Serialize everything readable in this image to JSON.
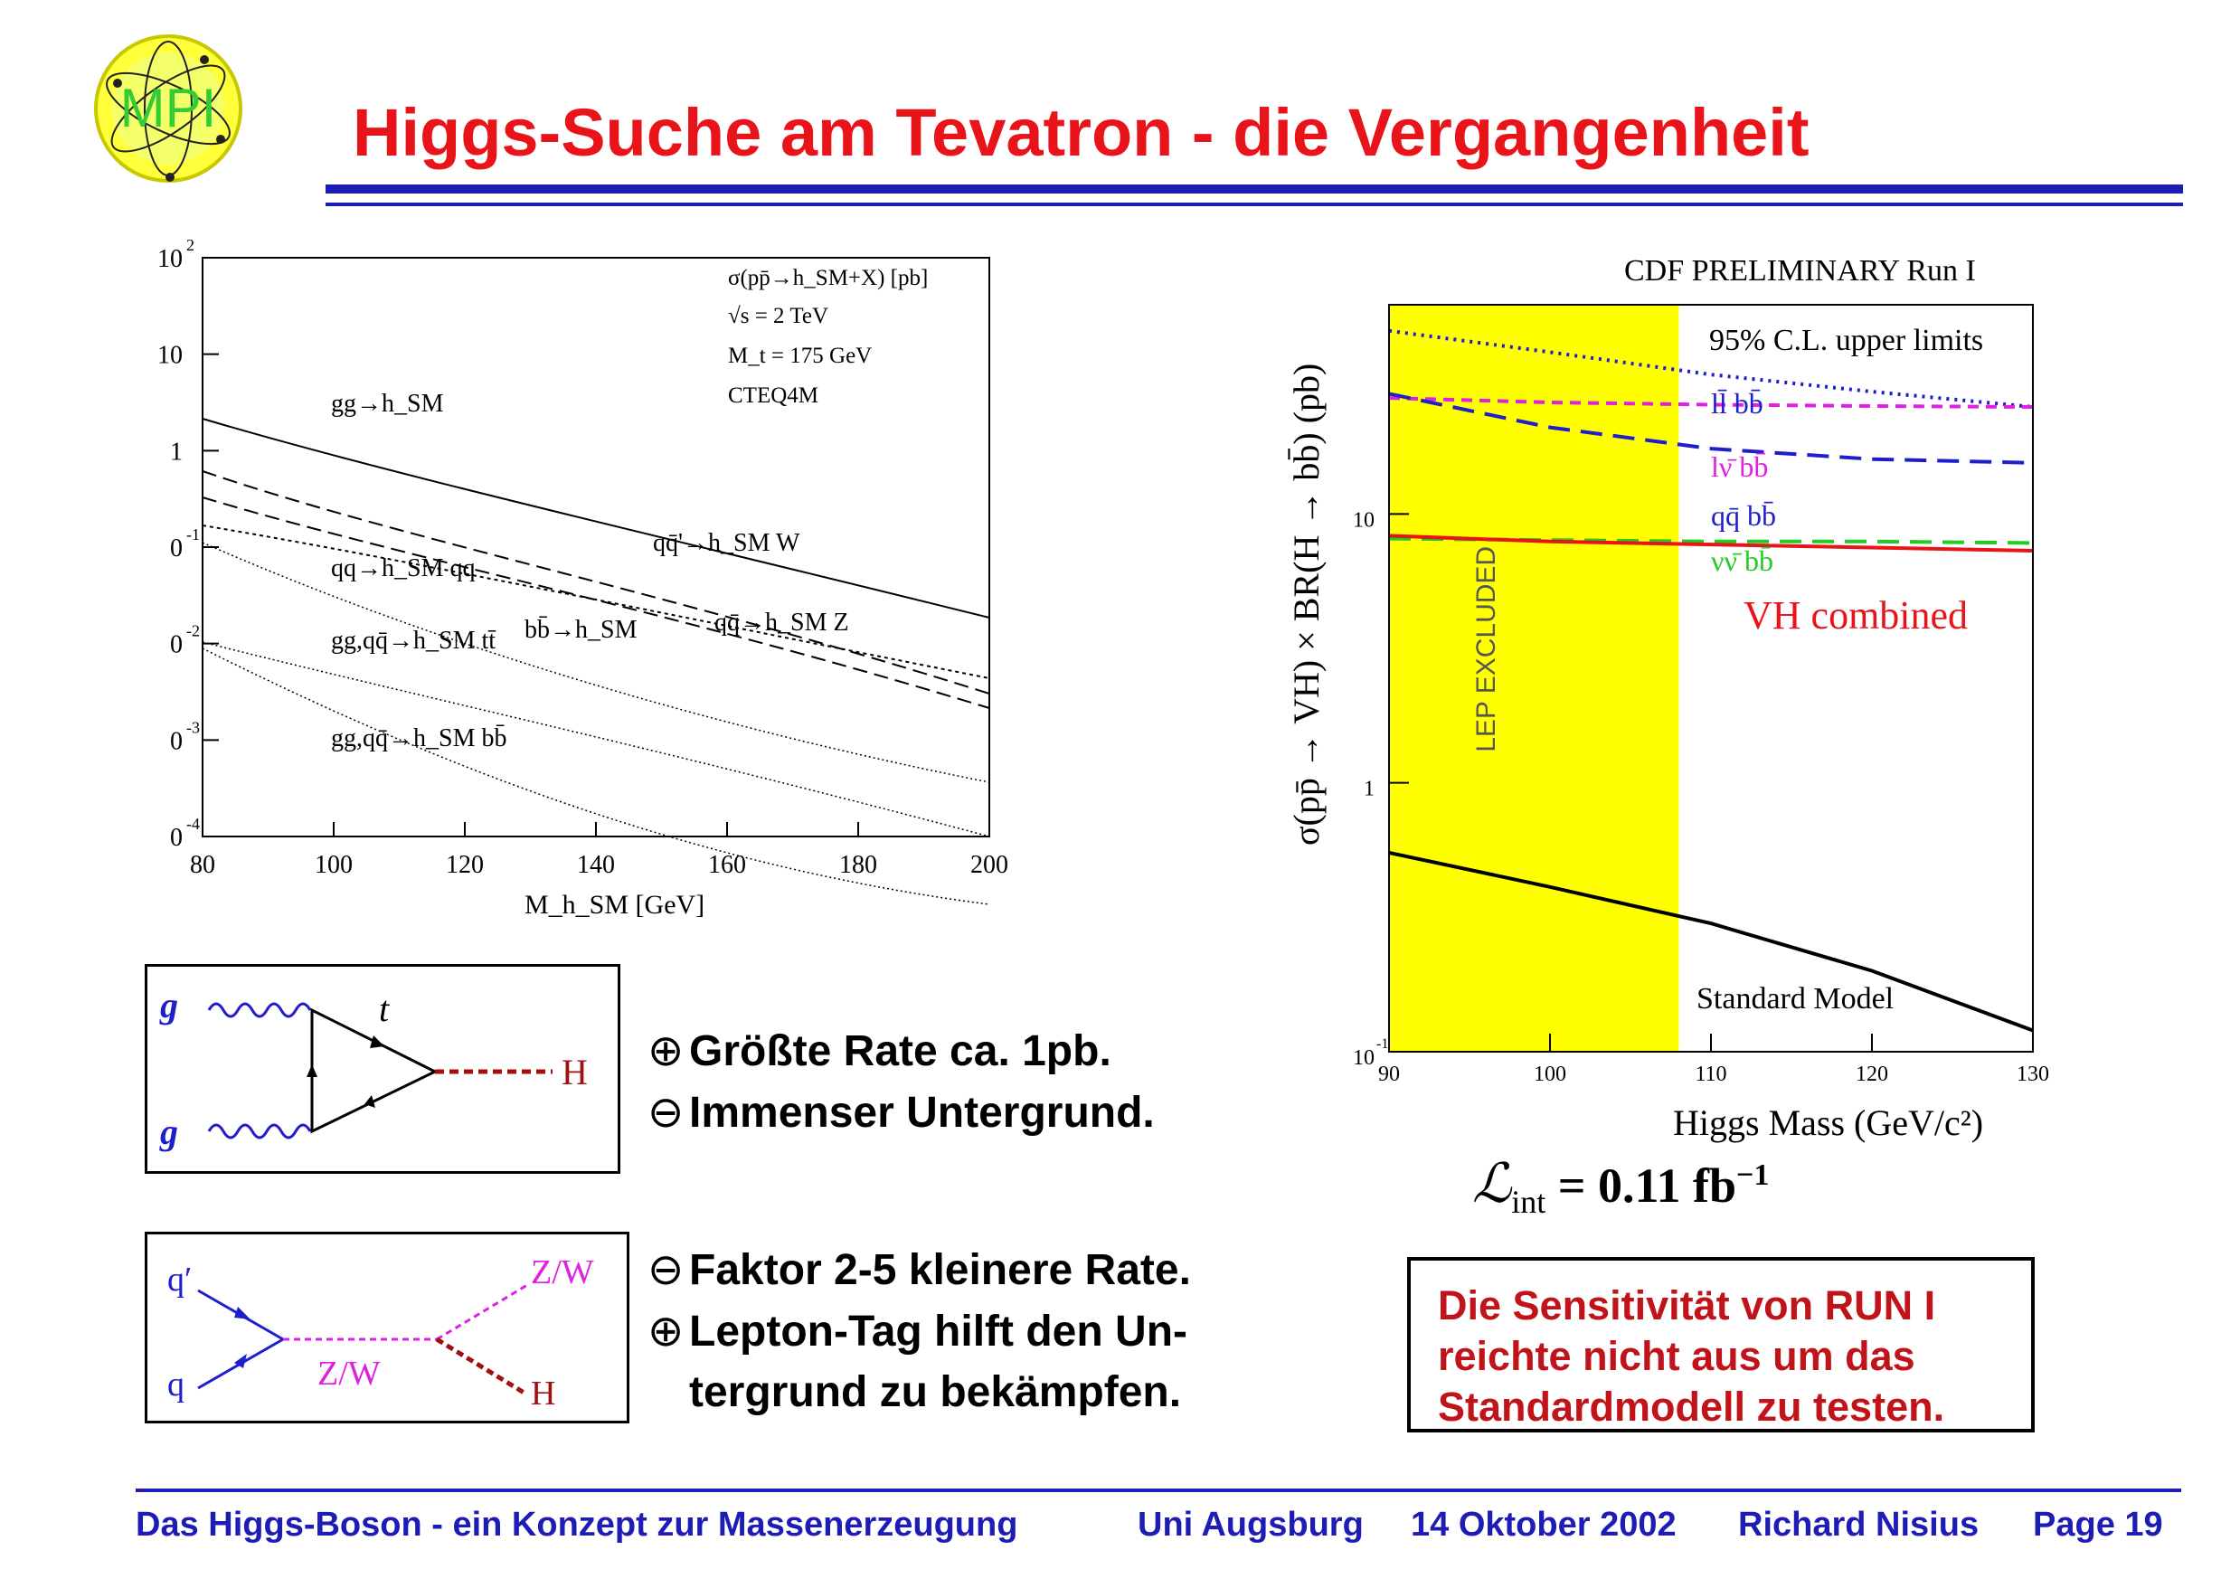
{
  "header": {
    "logo_text": "MPI",
    "title": "Higgs-Suche am Tevatron - die Vergangenheit"
  },
  "left_plot": {
    "legend": [
      "σ(pp̄→h_SM+X) [pb]",
      "√s = 2 TeV",
      "M_t = 175 GeV",
      "CTEQ4M"
    ],
    "xlabel": "M_h_SM [GeV]",
    "x_ticks": [
      "80",
      "100",
      "120",
      "140",
      "160",
      "180",
      "200"
    ],
    "y_ticks": [
      {
        "main": "10",
        "sup": "2"
      },
      {
        "main": "10",
        "sup": ""
      },
      {
        "main": "1",
        "sup": ""
      },
      {
        "main": "0",
        "sup": "-1"
      },
      {
        "main": "0",
        "sup": "-2"
      },
      {
        "main": "0",
        "sup": "-3"
      },
      {
        "main": "0",
        "sup": "-4"
      }
    ],
    "curve_labels": {
      "gg_h": "gg→h_SM",
      "qqprime_hw": "qq̄'→h_SM W",
      "qq_hqq": "qq→h_SM qq",
      "bb_h": "bb̄→h_SM",
      "qq_hz": "qq̄→h_SM Z",
      "gg_htt": "gg,qq̄→h_SM tt̄",
      "gg_hbb": "gg,qq̄→h_SM bb̄"
    }
  },
  "chart_data": {
    "type": "line",
    "title": "CDF PRELIMINARY Run I",
    "subtitle": "95% C.L. upper limits",
    "xlabel": "Higgs Mass (GeV/c²)",
    "ylabel": "σ(pp̄ → VH) × BR(H → bb̄) (pb)",
    "xlim": [
      90,
      130
    ],
    "ylim": [
      0.1,
      60
    ],
    "yscale": "log",
    "x_ticks": [
      "90",
      "100",
      "110",
      "120",
      "130"
    ],
    "y_ticks": [
      {
        "main": "10",
        "sup": "-1"
      },
      {
        "main": "1",
        "sup": ""
      },
      {
        "main": "10",
        "sup": ""
      }
    ],
    "band": {
      "label": "LEP EXCLUDED",
      "x_range": [
        90,
        108
      ],
      "color": "#ffff00"
    },
    "x": [
      90,
      100,
      110,
      120,
      130
    ],
    "series": [
      {
        "name": "lν̄ bb̄ ... ll̄ bb̄",
        "label": "ll̄ bb̄",
        "color": "#1e1ecc",
        "dash": "dot",
        "values": [
          48,
          40,
          33,
          28.5,
          25
        ]
      },
      {
        "name": "lν̄ bb̄",
        "label": "lν̄ bb̄",
        "color": "#e020e0",
        "dash": "dash-short",
        "values": [
          27,
          26,
          25.5,
          25.2,
          25
        ]
      },
      {
        "name": "qq̄ bb̄",
        "label": "qq̄ bb̄",
        "color": "#1e1ecc",
        "dash": "dash-long",
        "values": [
          28,
          21,
          17.5,
          16,
          15.5
        ]
      },
      {
        "name": "νν̄ bb̄",
        "label": "νν̄ bb̄",
        "color": "#22cc22",
        "dash": "dash-long",
        "values": [
          8.1,
          8.0,
          7.9,
          7.9,
          7.8
        ]
      },
      {
        "name": "VH combined",
        "label": "VH combined",
        "color": "#e8141a",
        "dash": "solid",
        "values": [
          8.3,
          7.9,
          7.7,
          7.5,
          7.3
        ]
      },
      {
        "name": "Standard Model",
        "label": "Standard Model",
        "color": "#000000",
        "dash": "solid",
        "values": [
          0.55,
          0.41,
          0.3,
          0.2,
          0.12
        ]
      }
    ]
  },
  "diagram1": {
    "g_top": "g",
    "g_bottom": "g",
    "t": "t",
    "H": "H"
  },
  "diagram2": {
    "qprime": "q′",
    "q": "q",
    "zw_mid": "Z/W",
    "zw_out": "Z/W",
    "H": "H"
  },
  "bullets1": [
    {
      "sym": "⊕",
      "text": "Größte Rate ca. 1pb."
    },
    {
      "sym": "⊖",
      "text": "Immenser Untergrund."
    }
  ],
  "bullets2": [
    {
      "sym": "⊖",
      "text": "Faktor 2-5 kleinere Rate."
    },
    {
      "sym": "⊕",
      "text": "Lepton-Tag hilft den Un-"
    },
    {
      "sym": "",
      "text": "tergrund zu bekämpfen."
    }
  ],
  "luminosity": {
    "symbol": "ℒ",
    "sub": "int",
    "eq": "= 0.11 fb",
    "sup": "−1"
  },
  "conclusion": [
    "Die Sensitivität von RUN I",
    "reichte nicht aus um das",
    "Standardmodell zu testen."
  ],
  "footer": {
    "talk": "Das Higgs-Boson - ein Konzept zur Massenerzeugung",
    "place": "Uni Augsburg",
    "date": "14 Oktober 2002",
    "author": "Richard Nisius",
    "page": "Page 19"
  }
}
